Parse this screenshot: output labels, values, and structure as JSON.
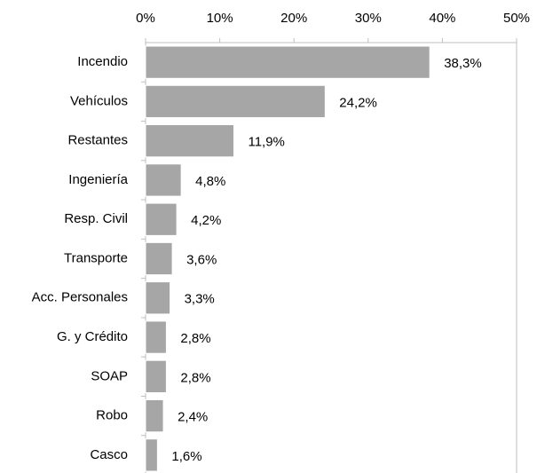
{
  "chart_data": {
    "type": "bar",
    "orientation": "horizontal",
    "categories": [
      "Incendio",
      "Vehículos",
      "Restantes",
      "Ingeniería",
      "Resp. Civil",
      "Transporte",
      "Acc. Personales",
      "G. y Crédito",
      "SOAP",
      "Robo",
      "Casco"
    ],
    "values": [
      38.3,
      24.2,
      11.9,
      4.8,
      4.2,
      3.6,
      3.3,
      2.8,
      2.8,
      2.4,
      1.6
    ],
    "value_labels": [
      "38,3%",
      "24,2%",
      "11,9%",
      "4,8%",
      "4,2%",
      "3,6%",
      "3,3%",
      "2,8%",
      "2,8%",
      "2,4%",
      "1,6%"
    ],
    "color": "#a6a6a6",
    "xlim": [
      0,
      50
    ],
    "xticks": [
      {
        "value": 0,
        "label": "0%"
      },
      {
        "value": 10,
        "label": "10%"
      },
      {
        "value": 20,
        "label": "20%"
      },
      {
        "value": 30,
        "label": "30%"
      },
      {
        "value": 40,
        "label": "40%"
      },
      {
        "value": 50,
        "label": "50%"
      }
    ],
    "grid": false
  }
}
